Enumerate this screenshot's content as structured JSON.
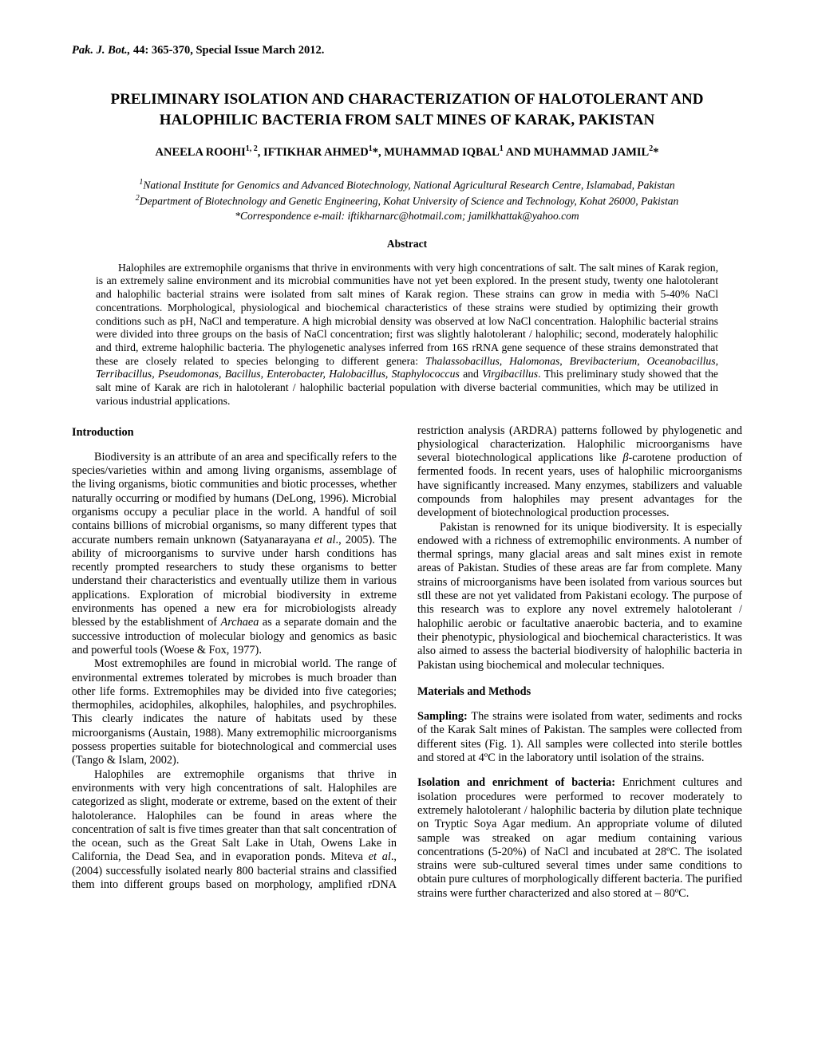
{
  "header": {
    "journal_abbrev": "Pak. J. Bot.,",
    "volume_issue": "44: 365-370, Special Issue March 2012."
  },
  "title": "PRELIMINARY ISOLATION AND CHARACTERIZATION OF HALOTOLERANT AND HALOPHILIC BACTERIA FROM SALT MINES OF KARAK, PAKISTAN",
  "authors_line": "ANEELA ROOHI",
  "author1_sup": "1, 2",
  "author2": ", IFTIKHAR AHMED",
  "author2_sup": "1",
  "author2_ast": "*",
  "author3": ", MUHAMMAD IQBAL",
  "author3_sup": "1",
  "author4": " AND MUHAMMAD JAMIL",
  "author4_sup": "2",
  "author4_ast": "*",
  "affiliations": {
    "line1_sup": "1",
    "line1": "National Institute for Genomics and Advanced Biotechnology, National Agricultural Research Centre, Islamabad, Pakistan",
    "line2_sup": "2",
    "line2": "Department of Biotechnology and Genetic Engineering, Kohat University of Science and Technology, Kohat 26000, Pakistan",
    "line3": "*Correspondence e-mail: iftikharnarc@hotmail.com; jamilkhattak@yahoo.com"
  },
  "abstract": {
    "heading": "Abstract",
    "body_1": "Halophiles are extremophile organisms that thrive in environments with very high concentrations of salt. The salt mines of Karak region, is an extremely saline environment and its microbial communities have not yet been explored. In the present study, twenty one halotolerant and halophilic bacterial strains were isolated from salt mines of Karak region. These strains can grow in media with 5-40% NaCl concentrations. Morphological, physiological and biochemical characteristics of these strains were studied by optimizing their growth conditions such as pH, NaCl and temperature. A high microbial density was observed at low NaCl concentration. Halophilic bacterial strains were divided into three groups on the basis of NaCl concentration; first was slightly halotolerant / halophilic; second, moderately halophilic and third, extreme halophilic bacteria. The phylogenetic analyses inferred from 16S rRNA gene sequence of these strains demonstrated that these are closely related to species belonging to different genera: ",
    "genera": "Thalassobacillus, Halomonas, Brevibacterium, Oceanobacillus, Terribacillus, Pseudomonas, Bacillus, Enterobacter, Halobacillus, Staphylococcus",
    "and_word": " and ",
    "last_genus": "Virgibacillus",
    "body_2": ". This preliminary study showed that the salt mine of Karak are rich in halotolerant / halophilic bacterial population with diverse bacterial communities, which may be utilized in various industrial applications."
  },
  "introduction": {
    "heading": "Introduction",
    "p1a": "Biodiversity is an attribute of an area and specifically refers to the species/varieties within and among living organisms, assemblage of the living organisms, biotic communities and biotic processes, whether naturally occurring or modified by humans (DeLong, 1996). Microbial organisms occupy a peculiar place in the world. A handful of soil contains billions of microbial organisms, so many different types that accurate numbers remain unknown (Satyanarayana ",
    "p1b": "et al",
    "p1c": "., 2005). The ability of microorganisms to survive under harsh conditions has recently prompted researchers to study these organisms to better understand their characteristics and eventually utilize them in various applications. Exploration of microbial biodiversity in extreme environments has opened a new era for microbiologists already blessed by the establishment of ",
    "p1d": "Archaea",
    "p1e": " as a separate domain and the successive introduction of molecular biology and genomics as basic and powerful tools (Woese & Fox, 1977).",
    "p2": "Most extremophiles are found in microbial world. The range of environmental extremes tolerated by microbes is much broader than other life forms. Extremophiles may be divided into five categories; thermophiles, acidophiles, alkophiles, halophiles, and psychrophiles. This clearly indicates the nature of habitats used by these microorganisms (Austain, 1988). Many extremophilic microorganisms possess properties suitable for biotechnological and commercial uses (Tango & Islam, 2002).",
    "p3a": "Halophiles are extremophile organisms that thrive in environments with very high concentrations of salt. Halophiles are categorized as slight, moderate or extreme, based on the extent of their halotolerance. Halophiles can be found in  areas where the concentration of salt is five times greater than that salt concentration of the ocean, such as the Great Salt Lake in Utah, Owens Lake in California, the Dead Sea, and in evaporation ponds. Miteva ",
    "p3b": "et al",
    "p3c": "., (2004) successfully isolated nearly 800 bacterial strains and classified them into different groups based on morphology, amplified rDNA restriction analysis (ARDRA) patterns followed by phylogenetic and physiological characterization. Halophilic microorganisms have several biotechnological applications like ",
    "p3d": "β",
    "p3e": "-carotene production of fermented foods. In recent years, uses of halophilic microorganisms have significantly increased. Many enzymes, stabilizers and valuable compounds from halophiles may present advantages for the development of biotechnological production processes.",
    "p4": "Pakistan is renowned for its unique biodiversity. It is especially endowed with a richness of extremophilic environments. A number of thermal springs, many glacial areas and salt mines exist in remote areas of Pakistan. Studies of these areas are far from complete. Many strains of microorganisms have been isolated from various sources but stll these are not yet validated from Pakistani ecology. The purpose of this research was to explore any novel extremely halotolerant / halophilic aerobic or facultative anaerobic bacteria, and to examine their phenotypic, physiological and biochemical characteristics. It was also aimed to assess the bacterial biodiversity of halophilic bacteria in Pakistan using biochemical and molecular techniques."
  },
  "materials": {
    "heading": "Materials and Methods",
    "sampling_label": "Sampling: ",
    "sampling_body": "The strains were isolated from water, sediments and rocks of the Karak Salt mines of Pakistan. The samples were collected from different sites (Fig. 1). All samples were collected into sterile bottles and stored at 4ºC in the laboratory until isolation of the strains.",
    "isolation_label": "Isolation and enrichment of bacteria: ",
    "isolation_body": "Enrichment cultures and isolation procedures were performed to recover moderately to extremely halotolerant / halophilic bacteria by dilution plate technique on Tryptic Soya Agar medium. An appropriate volume of diluted sample was streaked on agar medium containing various concentrations (5-20%) of NaCl and incubated at 28ºC. The isolated strains were sub-cultured several times under same conditions to obtain pure cultures of morphologically different bacteria. The purified strains were further characterized and also stored at – 80ºC."
  }
}
